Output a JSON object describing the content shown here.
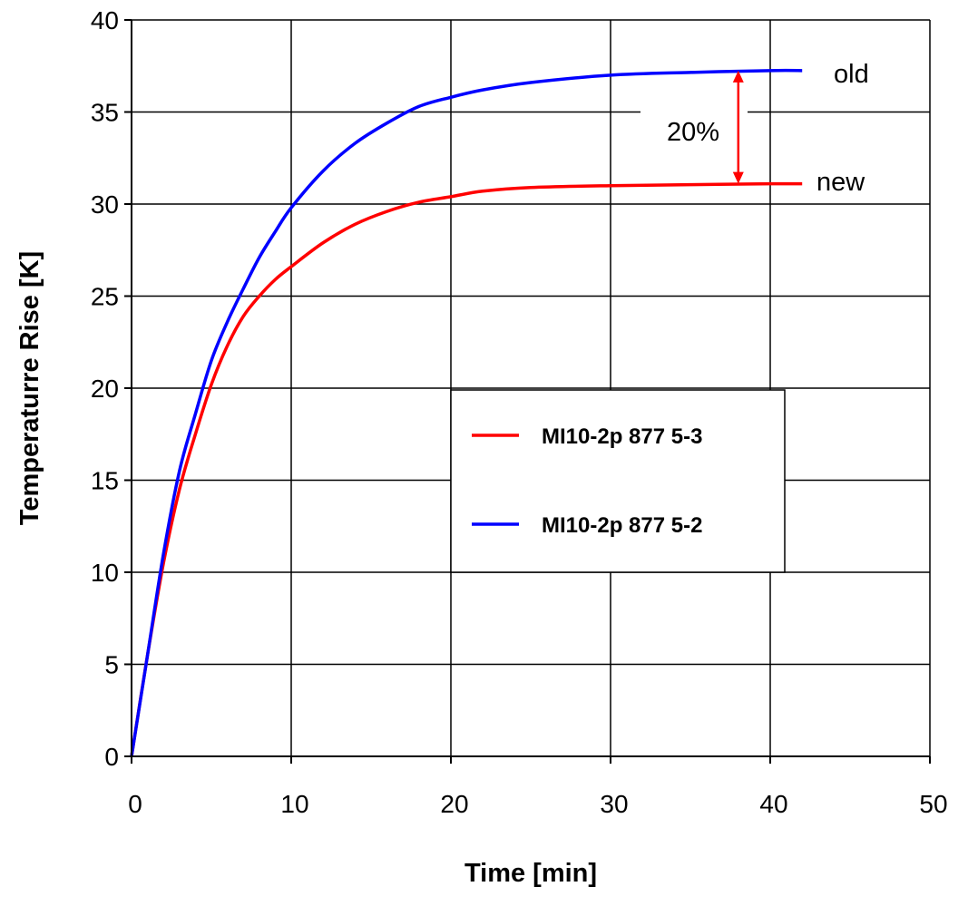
{
  "chart_data": {
    "type": "line",
    "xlabel": "Time [min]",
    "ylabel": "Temperaturre Rise [K]",
    "xlim": [
      0,
      50
    ],
    "ylim": [
      0,
      40
    ],
    "xticks": [
      0,
      10,
      20,
      30,
      40,
      50
    ],
    "yticks": [
      0,
      5,
      10,
      15,
      20,
      25,
      30,
      35,
      40
    ],
    "grid": true,
    "legend_position": "center-right",
    "series": [
      {
        "name": "MI10-2p 877 5-3",
        "color": "#ff0000",
        "x": [
          0,
          1,
          2,
          3,
          4,
          5,
          6,
          7,
          8,
          9,
          10,
          12,
          14,
          16,
          18,
          20,
          22,
          25,
          30,
          35,
          40,
          42
        ],
        "y": [
          0,
          5.5,
          10.5,
          14.5,
          17.5,
          20.2,
          22.3,
          23.9,
          25.0,
          25.9,
          26.6,
          27.9,
          28.9,
          29.6,
          30.1,
          30.4,
          30.7,
          30.9,
          31.0,
          31.05,
          31.1,
          31.1
        ]
      },
      {
        "name": "MI10-2p 877 5-2",
        "color": "#0000ff",
        "x": [
          0,
          1,
          2,
          3,
          4,
          5,
          6,
          7,
          8,
          9,
          10,
          12,
          14,
          16,
          18,
          20,
          22,
          25,
          30,
          35,
          40,
          42
        ],
        "y": [
          0,
          5.5,
          11.0,
          15.5,
          18.6,
          21.5,
          23.6,
          25.4,
          27.1,
          28.5,
          29.8,
          31.8,
          33.3,
          34.4,
          35.3,
          35.8,
          36.2,
          36.6,
          37.0,
          37.15,
          37.25,
          37.25
        ]
      }
    ],
    "annotations": {
      "old_label": "old",
      "new_label": "new",
      "diff_label": "20%",
      "arrow_x": 38,
      "arrow_from_y": 31.1,
      "arrow_to_y": 37.25
    }
  }
}
